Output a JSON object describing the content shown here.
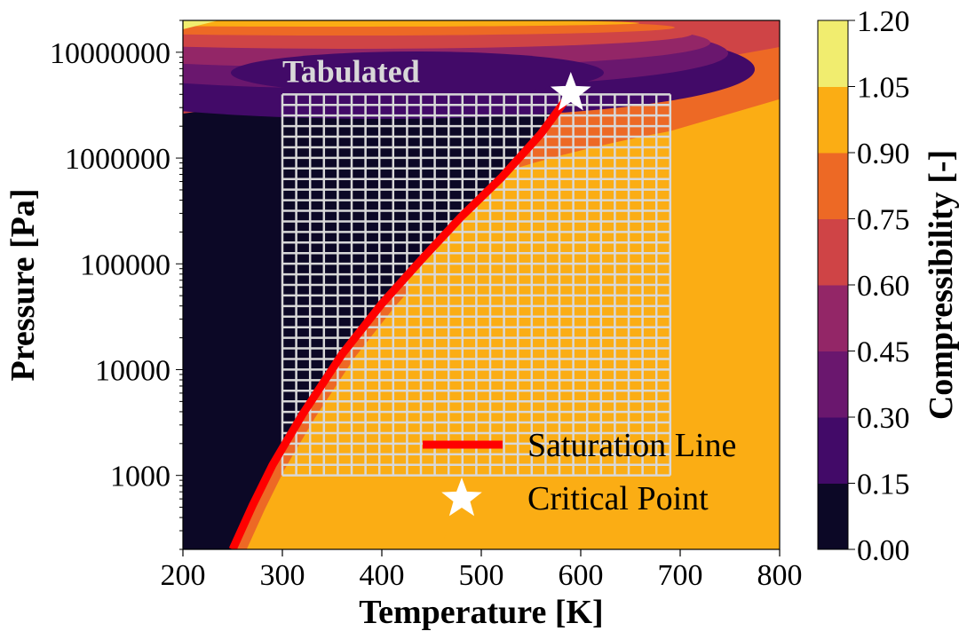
{
  "chart_data": {
    "type": "contour",
    "xlabel": "Temperature [K]",
    "ylabel": "Pressure [Pa]",
    "xlim": [
      200,
      800
    ],
    "ylim": [
      200,
      20000000
    ],
    "y_scale": "log",
    "x_ticks": [
      "200",
      "300",
      "400",
      "500",
      "600",
      "700",
      "800"
    ],
    "x_tick_values": [
      200,
      300,
      400,
      500,
      600,
      700,
      800
    ],
    "y_ticks": [
      "1000",
      "10000",
      "100000",
      "1000000",
      "10000000"
    ],
    "y_tick_values": [
      1000,
      10000,
      100000,
      1000000,
      10000000
    ],
    "colorbar": {
      "label": "Compressibility [-]",
      "ticks": [
        "0.00",
        "0.15",
        "0.30",
        "0.45",
        "0.60",
        "0.75",
        "0.90",
        "1.05",
        "1.20"
      ],
      "levels": [
        0.0,
        0.15,
        0.3,
        0.45,
        0.6,
        0.75,
        0.9,
        1.05,
        1.2
      ],
      "colors": [
        "#0c0826",
        "#420a68",
        "#6a176e",
        "#932667",
        "#cf4446",
        "#ed6925",
        "#fbad14",
        "#f1ed6f"
      ]
    },
    "saturation_line": {
      "name": "Saturation Line",
      "color": "#ff0000",
      "T": [
        250,
        270,
        290,
        320,
        360,
        400,
        440,
        480,
        520,
        560,
        590
      ],
      "P": [
        200,
        520,
        1250,
        3750,
        14000,
        42000,
        110000,
        280000,
        650000,
        1700000,
        4100000
      ]
    },
    "critical_point": {
      "name": "Critical Point",
      "T": 590,
      "P": 4100000,
      "marker": "star",
      "color": "#ffffff"
    },
    "tabulated_region": {
      "label": "Tabulated",
      "T_range": [
        300,
        690
      ],
      "P_range": [
        1000,
        4000000
      ],
      "n_T": 28,
      "n_P": 36
    },
    "legend": {
      "location": "lower right",
      "entries": [
        "Saturation Line",
        "Critical Point"
      ]
    }
  }
}
